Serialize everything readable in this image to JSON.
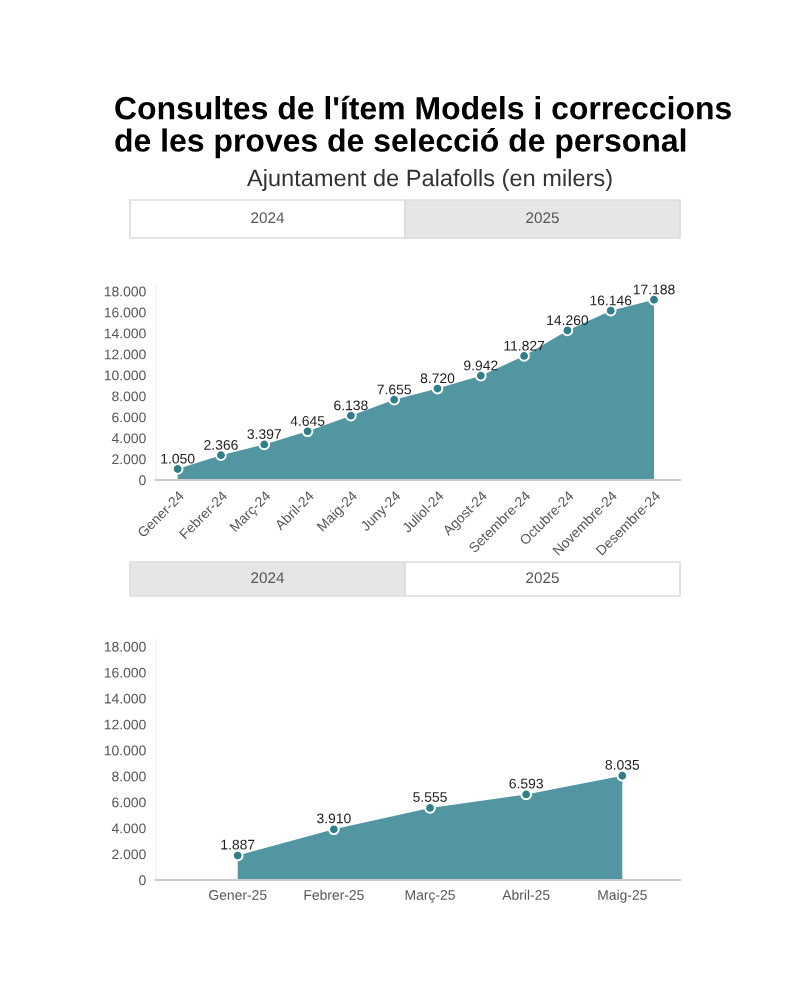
{
  "chart_data": [
    {
      "type": "area",
      "title": "Consultes de l'ítem Models i correccions\nde les proves de selecció de personal",
      "subtitle": "Ajuntament de Palafolls (en milers)",
      "annotations": [
        "2024",
        "2025"
      ],
      "categories": [
        "Gener-24",
        "Febrer-24",
        "Març-24",
        "Abril-24",
        "Maig-24",
        "Juny-24",
        "Juliol-24",
        "Agost-24",
        "Setembre-24",
        "Octubre-24",
        "Novembre-24",
        "Desembre-24"
      ],
      "series": [
        {
          "color": "#5196a0",
          "values": [
            1050,
            2366,
            3397,
            4645,
            6138,
            7655,
            8720,
            9942,
            11827,
            14260,
            16146,
            17188
          ],
          "value_labels": [
            "1.050",
            "2.366",
            "3.397",
            "4.645",
            "6.138",
            "7.655",
            "8.720",
            "9.942",
            "11.827",
            "14.260",
            "16.146",
            "17.188"
          ]
        }
      ],
      "ylim": [
        0,
        18500
      ],
      "yticks": [
        0,
        {
          "value": 2000,
          "label": "2.000"
        },
        {
          "value": 4000,
          "label": "4.000"
        },
        {
          "value": 6000,
          "label": "6.000"
        },
        {
          "value": 8000,
          "label": "8.000"
        },
        {
          "value": 10000,
          "label": "10.000"
        },
        {
          "value": 12000,
          "label": "12.000"
        },
        {
          "value": 14000,
          "label": "14.000"
        },
        {
          "value": 16000,
          "label": "16.000"
        },
        {
          "value": 18000,
          "label": "18.000"
        }
      ],
      "marker": "circle",
      "grid": false,
      "legend": false
    },
    {
      "type": "area",
      "annotations": [
        "2024",
        "2025"
      ],
      "categories": [
        "Gener-25",
        "Febrer-25",
        "Març-25",
        "Abril-25",
        "Maig-25"
      ],
      "series": [
        {
          "color": "#5196a0",
          "values": [
            1887,
            3910,
            5555,
            6593,
            8035
          ],
          "value_labels": [
            "1.887",
            "3.910",
            "5.555",
            "6.593",
            "8.035"
          ]
        }
      ],
      "ylim": [
        0,
        18500
      ],
      "yticks": [
        0,
        {
          "value": 2000,
          "label": "2.000"
        },
        {
          "value": 4000,
          "label": "4.000"
        },
        {
          "value": 6000,
          "label": "6.000"
        },
        {
          "value": 8000,
          "label": "8.000"
        },
        {
          "value": 10000,
          "label": "10.000"
        },
        {
          "value": 12000,
          "label": "12.000"
        },
        {
          "value": 14000,
          "label": "14.000"
        },
        {
          "value": 16000,
          "label": "16.000"
        },
        {
          "value": 18000,
          "label": "18.000"
        }
      ],
      "marker": "circle",
      "grid": false,
      "legend": false
    }
  ]
}
